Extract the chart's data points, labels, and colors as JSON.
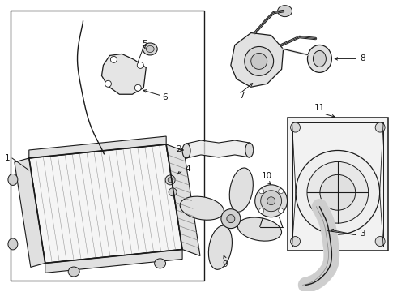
{
  "background_color": "#ffffff",
  "line_color": "#1a1a1a",
  "gray_fill": "#e8e8e8",
  "light_fill": "#f4f4f4",
  "hatch_color": "#aaaaaa"
}
